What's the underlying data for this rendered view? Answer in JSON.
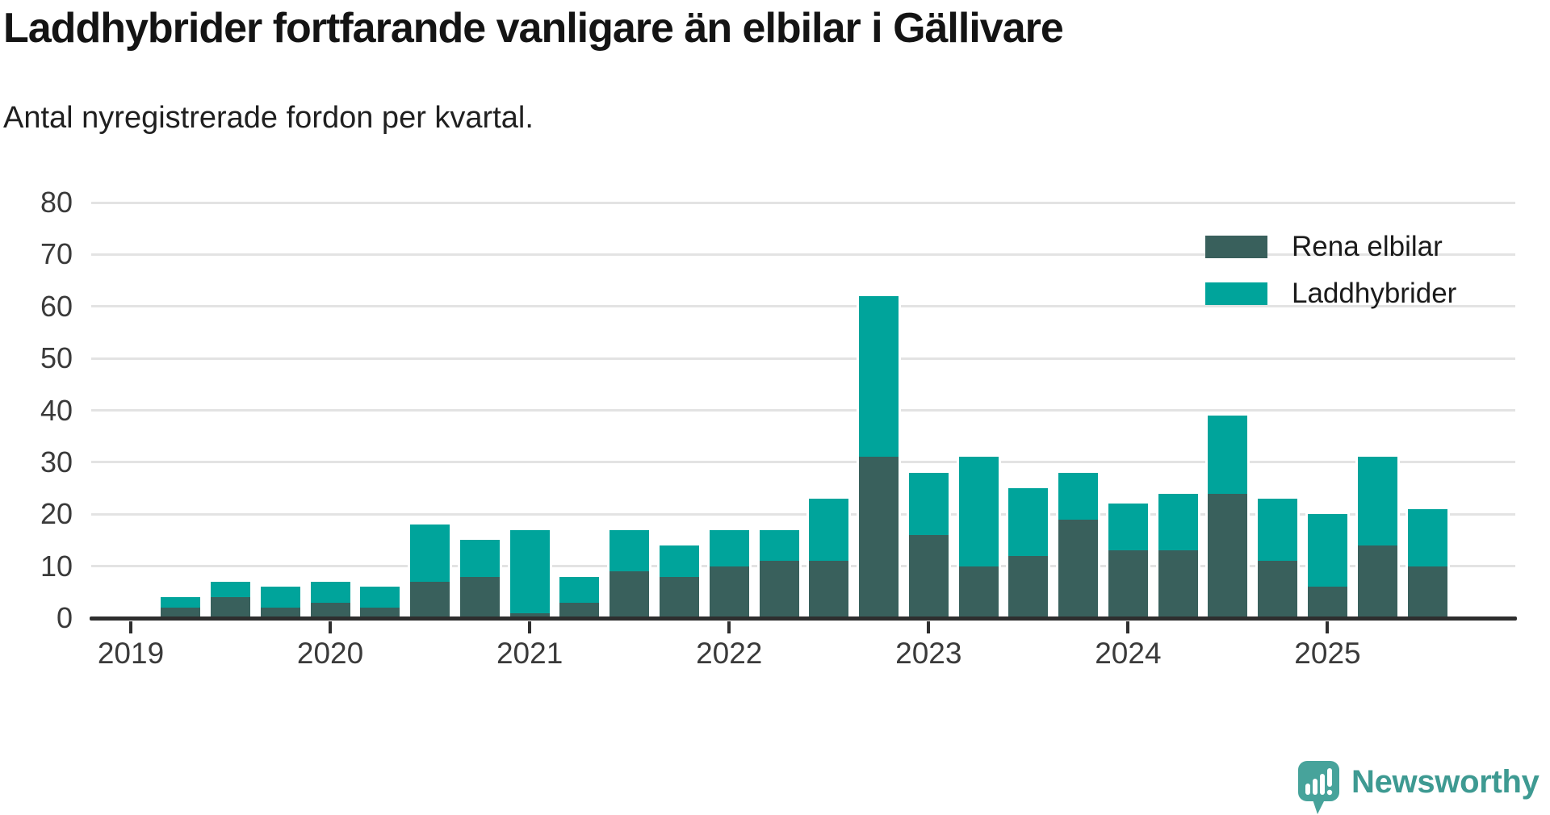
{
  "header": {
    "title": "Laddhybrider fortfarande vanligare än elbilar i Gällivare",
    "subtitle": "Antal nyregistrerade fordon per kvartal."
  },
  "chart_data": {
    "type": "bar",
    "stacked": true,
    "title": "Laddhybrider fortfarande vanligare än elbilar i Gällivare",
    "subtitle": "Antal nyregistrerade fordon per kvartal.",
    "categories": [
      "2019 Q1",
      "2019 Q2",
      "2019 Q3",
      "2019 Q4",
      "2020 Q1",
      "2020 Q2",
      "2020 Q3",
      "2020 Q4",
      "2021 Q1",
      "2021 Q2",
      "2021 Q3",
      "2021 Q4",
      "2022 Q1",
      "2022 Q2",
      "2022 Q3",
      "2022 Q4",
      "2023 Q1",
      "2023 Q2",
      "2023 Q3",
      "2023 Q4",
      "2024 Q1",
      "2024 Q2",
      "2024 Q3",
      "2024 Q4",
      "2025 Q1",
      "2025 Q2",
      "2025 Q3"
    ],
    "x_tick_labels": [
      "2019",
      "2020",
      "2021",
      "2022",
      "2023",
      "2024",
      "2025"
    ],
    "series": [
      {
        "name": "Rena elbilar",
        "color": "#39605c",
        "values": [
          0,
          2,
          4,
          2,
          3,
          2,
          7,
          8,
          1,
          3,
          9,
          8,
          10,
          11,
          11,
          31,
          16,
          10,
          12,
          19,
          13,
          13,
          24,
          11,
          6,
          14,
          10
        ]
      },
      {
        "name": "Laddhybrider",
        "color": "#00a49b",
        "values": [
          0,
          2,
          3,
          4,
          4,
          4,
          11,
          7,
          16,
          5,
          8,
          6,
          7,
          6,
          12,
          31,
          12,
          21,
          13,
          9,
          9,
          11,
          15,
          12,
          14,
          17,
          11
        ]
      }
    ],
    "stack_totals": [
      0,
      4,
      7,
      6,
      7,
      6,
      18,
      15,
      17,
      8,
      17,
      14,
      17,
      17,
      23,
      62,
      28,
      31,
      25,
      28,
      22,
      24,
      39,
      23,
      20,
      31,
      21
    ],
    "xlabel": "",
    "ylabel": "",
    "ylim": [
      0,
      80
    ],
    "yticks": [
      0,
      10,
      20,
      30,
      40,
      50,
      60,
      70,
      80
    ],
    "grid": true,
    "legend_position": "top-right"
  },
  "brand": {
    "name": "Newsworthy",
    "color": "#3e9a92"
  }
}
